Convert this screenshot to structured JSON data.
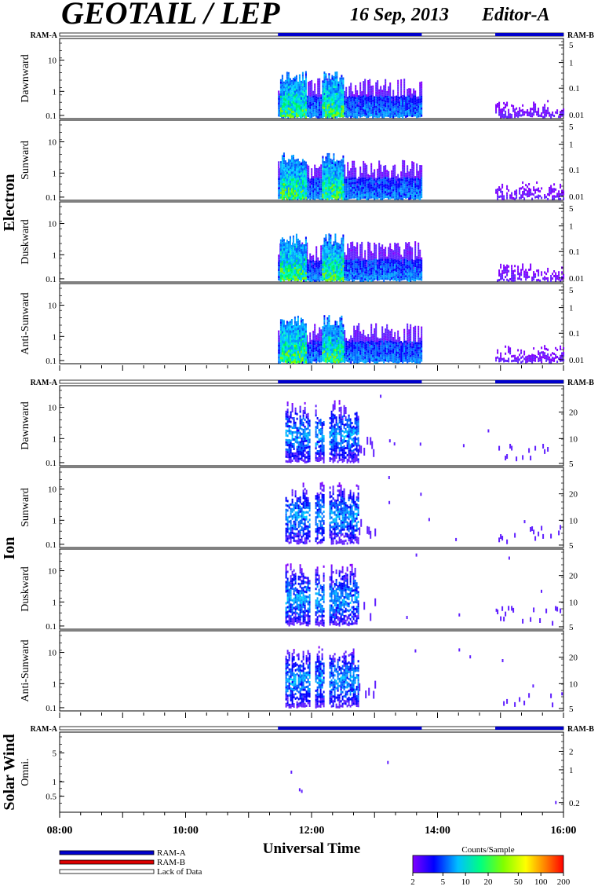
{
  "header": {
    "title": "GEOTAIL / LEP",
    "date": "16 Sep, 2013",
    "editor": "Editor-A"
  },
  "groups": [
    {
      "name": "Electron",
      "bar_labels": {
        "left": "RAM-A",
        "right": "RAM-B"
      },
      "panels": [
        {
          "label": "Dawnward",
          "left_ticks": [
            "10",
            "1",
            "0.1"
          ],
          "right_ticks": [
            "5",
            "1",
            "0.1",
            "0.01"
          ]
        },
        {
          "label": "Sunward",
          "left_ticks": [
            "10",
            "1",
            "0.1"
          ],
          "right_ticks": [
            "5",
            "1",
            "0.1",
            "0.01"
          ]
        },
        {
          "label": "Duskward",
          "left_ticks": [
            "10",
            "1",
            "0.1"
          ],
          "right_ticks": [
            "5",
            "1",
            "0.1",
            "0.01"
          ]
        },
        {
          "label": "Anti-Sunward",
          "left_ticks": [
            "10",
            "1",
            "0.1"
          ],
          "right_ticks": [
            "5",
            "1",
            "0.1",
            "0.01"
          ]
        }
      ]
    },
    {
      "name": "Ion",
      "bar_labels": {
        "left": "RAM-A",
        "right": "RAM-B"
      },
      "panels": [
        {
          "label": "Dawnward",
          "left_ticks": [
            "10",
            "1",
            "0.1"
          ],
          "right_ticks": [
            "20",
            "10",
            "5"
          ]
        },
        {
          "label": "Sunward",
          "left_ticks": [
            "10",
            "1",
            "0.1"
          ],
          "right_ticks": [
            "20",
            "10",
            "5"
          ]
        },
        {
          "label": "Duskward",
          "left_ticks": [
            "10",
            "1",
            "0.1"
          ],
          "right_ticks": [
            "20",
            "10",
            "5"
          ]
        },
        {
          "label": "Anti-Sunward",
          "left_ticks": [
            "10",
            "1",
            "0.1"
          ],
          "right_ticks": [
            "20",
            "10",
            "5"
          ]
        }
      ]
    },
    {
      "name": "Solar Wind",
      "bar_labels": {
        "left": "RAM-A",
        "right": "RAM-B"
      },
      "panels": [
        {
          "label": "Omni.",
          "left_ticks": [
            "5",
            "1",
            "0.5"
          ],
          "right_ticks": [
            "2",
            "1",
            "0.2"
          ]
        }
      ]
    }
  ],
  "time_axis": {
    "label": "Universal Time",
    "ticks": [
      "08:00",
      "10:00",
      "12:00",
      "14:00",
      "16:00"
    ]
  },
  "legend": {
    "items": [
      {
        "label": "RAM-A",
        "color": "#0000cc"
      },
      {
        "label": "RAM-B",
        "color": "#dd0000"
      },
      {
        "label": "Lack of Data",
        "color": "#ffffff"
      }
    ]
  },
  "colorbar": {
    "title": "Counts/Sample",
    "ticks": [
      "2",
      "5",
      "10",
      "20",
      "50",
      "100",
      "200"
    ],
    "stops": [
      "#8000ff",
      "#0000ff",
      "#00c0ff",
      "#00ff80",
      "#80ff00",
      "#ffff00",
      "#ff8000",
      "#ff0000"
    ]
  },
  "chart_data": {
    "type": "heatmap",
    "x_range": [
      "08:00",
      "16:00"
    ],
    "ram_a_intervals": [
      [
        "11:28",
        "13:45"
      ],
      [
        "14:55",
        "16:00"
      ]
    ],
    "electron_activity": [
      [
        "11:28",
        "13:45",
        "moderate"
      ],
      [
        "11:30",
        "11:55",
        "high"
      ],
      [
        "12:10",
        "12:30",
        "high"
      ],
      [
        "14:55",
        "16:00",
        "low"
      ]
    ],
    "ion_activity": [
      [
        "11:35",
        "12:45",
        "moderate"
      ],
      [
        "12:45",
        "13:00",
        "low"
      ],
      [
        "14:55",
        "16:00",
        "sparse"
      ]
    ],
    "color_scale": {
      "label": "Counts/Sample",
      "min": 2,
      "max": 200,
      "log": true
    }
  }
}
